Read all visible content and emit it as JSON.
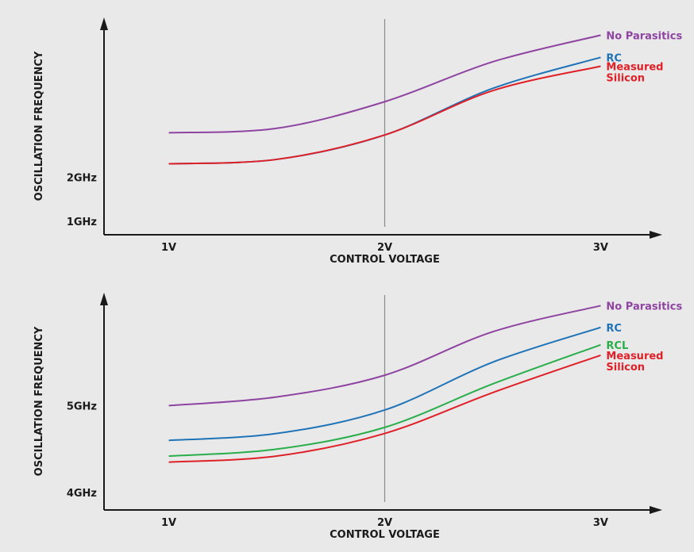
{
  "chart_data": [
    {
      "type": "line",
      "xlabel": "CONTROL VOLTAGE",
      "ylabel": "OSCILLATION FREQUENCY",
      "x_ticks": [
        "1V",
        "2V",
        "3V"
      ],
      "y_ticks": [
        "1GHz",
        "2GHz"
      ],
      "y_tick_values": [
        1,
        2
      ],
      "y_unit": "GHz",
      "xlim": [
        0.7,
        3.3
      ],
      "ylim": [
        0.7,
        5.6
      ],
      "reference_line_x": 2,
      "x": [
        1.0,
        1.5,
        2.0,
        2.5,
        3.0
      ],
      "series": [
        {
          "name": "No Parasitics",
          "label_lines": [
            "No Parasitics"
          ],
          "color": "#8e44a0",
          "values": [
            3.0,
            3.1,
            3.7,
            4.6,
            5.2
          ]
        },
        {
          "name": "RC",
          "label_lines": [
            "RC"
          ],
          "color": "#1f73b7",
          "values": [
            2.3,
            2.4,
            2.95,
            4.0,
            4.7
          ]
        },
        {
          "name": "Measured Silicon",
          "label_lines": [
            "Measured",
            "Silicon"
          ],
          "color": "#e02027",
          "values": [
            2.3,
            2.4,
            2.95,
            3.95,
            4.5
          ]
        }
      ]
    },
    {
      "type": "line",
      "xlabel": "CONTROL VOLTAGE",
      "ylabel": "OSCILLATION FREQUENCY",
      "x_ticks": [
        "1V",
        "2V",
        "3V"
      ],
      "y_ticks": [
        "4GHz",
        "5GHz"
      ],
      "y_tick_values": [
        4,
        5
      ],
      "y_unit": "GHz",
      "xlim": [
        0.7,
        3.3
      ],
      "ylim": [
        3.8,
        6.3
      ],
      "reference_line_x": 2,
      "x": [
        1.0,
        1.5,
        2.0,
        2.5,
        3.0
      ],
      "series": [
        {
          "name": "No Parasitics",
          "label_lines": [
            "No Parasitics"
          ],
          "color": "#8e44a0",
          "values": [
            5.0,
            5.1,
            5.35,
            5.85,
            6.15
          ]
        },
        {
          "name": "RC",
          "label_lines": [
            "RC"
          ],
          "color": "#1f73b7",
          "values": [
            4.6,
            4.68,
            4.95,
            5.5,
            5.9
          ]
        },
        {
          "name": "RCL",
          "label_lines": [
            "RCL"
          ],
          "color": "#2aae4a",
          "values": [
            4.42,
            4.5,
            4.75,
            5.25,
            5.7
          ]
        },
        {
          "name": "Measured Silicon",
          "label_lines": [
            "Measured",
            "Silicon"
          ],
          "color": "#e02027",
          "values": [
            4.35,
            4.42,
            4.68,
            5.15,
            5.58
          ]
        }
      ]
    }
  ]
}
